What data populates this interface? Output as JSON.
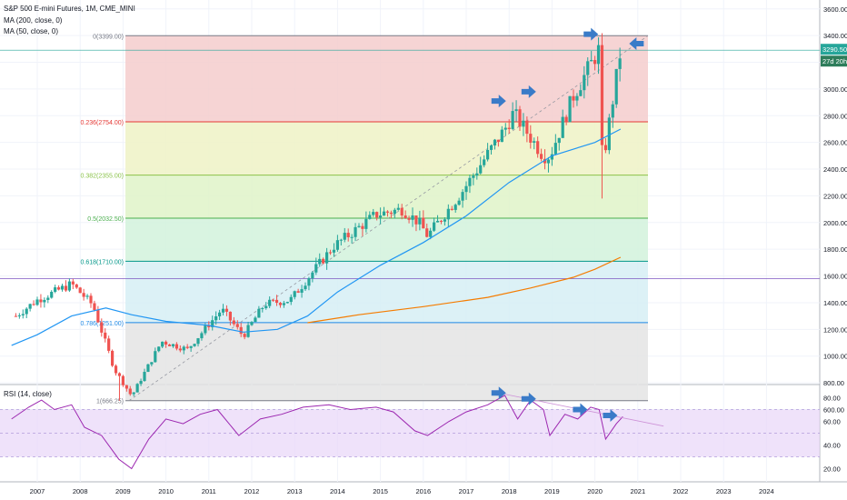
{
  "header": {
    "symbol": "S&P 500 E-mini Futures, 1M, CME_MINI",
    "ma200": "MA (200, close, 0)",
    "ma50": "MA (50, close, 0)",
    "rsi": "RSI (14, close)"
  },
  "price_badge": {
    "value": "3290.50",
    "countdown": "27d 20h"
  },
  "colors": {
    "up": "#26a69a",
    "down": "#ef5350",
    "ma50": "#2196f3",
    "ma200": "#f57c00",
    "rsi_line": "#9c27b0",
    "rsi_band": "#e8d6f8",
    "arrow": "#3a7bc8",
    "badge": "#26a69a"
  },
  "chart_data": [
    {
      "type": "candlestick",
      "title": "S&P 500 E-mini Futures, 1M, CME_MINI",
      "x_ticks": [
        "2007",
        "2008",
        "2009",
        "2010",
        "2011",
        "2012",
        "2013",
        "2014",
        "2015",
        "2016",
        "2017",
        "2018",
        "2019",
        "2020",
        "2021",
        "2022",
        "2023",
        "2024"
      ],
      "y_ticks": [
        "3600.00",
        "3400.00",
        "3200.00",
        "3000.00",
        "2800.00",
        "2600.00",
        "2400.00",
        "2200.00",
        "2000.00",
        "1800.00",
        "1600.00",
        "1400.00",
        "1200.00",
        "1000.00",
        "800.00",
        "600.00"
      ],
      "ylim": [
        560,
        3680
      ],
      "fib_levels": [
        {
          "label": "0(3399.00)",
          "value": 3399.0,
          "color": "#787b86",
          "fill": "#f5cccc"
        },
        {
          "label": "0.236(2754.00)",
          "value": 2754.0,
          "color": "#e53935",
          "fill": "#eef2c6"
        },
        {
          "label": "0.382(2355.00)",
          "value": 2355.0,
          "color": "#8bc34a",
          "fill": "#dff3c8"
        },
        {
          "label": "0.5(2032.50)",
          "value": 2032.5,
          "color": "#4caf50",
          "fill": "#d2f2dc"
        },
        {
          "label": "0.618(1710.00)",
          "value": 1710.0,
          "color": "#009688",
          "fill": "#d6eef5"
        },
        {
          "label": "0.786(1251.00)",
          "value": 1251.0,
          "color": "#1e88e5",
          "fill": "#e4e4e4"
        },
        {
          "label": "1(666.25)",
          "value": 666.25,
          "color": "#787b86",
          "fill": null
        }
      ],
      "candles_yearly_anchor_closes": {
        "2006.5": 1300,
        "2007.0": 1420,
        "2007.8": 1540,
        "2008.3": 1380,
        "2008.8": 900,
        "2009.2": 700,
        "2009.9": 1110,
        "2010.5": 1050,
        "2011.3": 1350,
        "2011.8": 1150,
        "2012.3": 1390,
        "2012.9": 1420,
        "2013.9": 1820,
        "2014.9": 2060,
        "2015.5": 2100,
        "2015.9": 2000,
        "2016.1": 1900,
        "2016.9": 2230,
        "2017.9": 2700,
        "2018.1": 2820,
        "2018.8": 2500,
        "2018.95": 2500,
        "2019.5": 2950,
        "2020.1": 3300,
        "2020.25": 2580,
        "2020.6": 3290
      },
      "ma50_series": {
        "name": "MA (50, close, 0)",
        "points": [
          [
            2006.4,
            1080
          ],
          [
            2007.0,
            1160
          ],
          [
            2007.8,
            1300
          ],
          [
            2008.6,
            1360
          ],
          [
            2009.2,
            1310
          ],
          [
            2010.0,
            1260
          ],
          [
            2011.0,
            1230
          ],
          [
            2011.8,
            1180
          ],
          [
            2012.6,
            1200
          ],
          [
            2013.3,
            1300
          ],
          [
            2014.0,
            1480
          ],
          [
            2015.0,
            1680
          ],
          [
            2016.0,
            1850
          ],
          [
            2017.0,
            2050
          ],
          [
            2018.0,
            2300
          ],
          [
            2019.0,
            2500
          ],
          [
            2020.0,
            2600
          ],
          [
            2020.6,
            2700
          ]
        ]
      },
      "ma200_series": {
        "name": "MA (200, close, 0)",
        "points": [
          [
            2013.3,
            1250
          ],
          [
            2014.5,
            1310
          ],
          [
            2016.0,
            1370
          ],
          [
            2017.5,
            1440
          ],
          [
            2018.5,
            1510
          ],
          [
            2019.5,
            1590
          ],
          [
            2020.0,
            1650
          ],
          [
            2020.6,
            1740
          ]
        ]
      },
      "last_price": 3290.5,
      "blue_arrows": [
        [
          2017.8,
          2910
        ],
        [
          2018.5,
          2980
        ],
        [
          2019.95,
          3410
        ],
        [
          2020.8,
          3340
        ]
      ]
    },
    {
      "type": "line",
      "title": "RSI (14, close)",
      "y_ticks": [
        "80.00",
        "60.00",
        "40.00",
        "20.00"
      ],
      "ylim": [
        10,
        90
      ],
      "band": [
        30,
        70
      ],
      "rsi_points": [
        [
          2006.4,
          62
        ],
        [
          2006.8,
          72
        ],
        [
          2007.1,
          78
        ],
        [
          2007.4,
          70
        ],
        [
          2007.8,
          74
        ],
        [
          2008.1,
          55
        ],
        [
          2008.5,
          48
        ],
        [
          2008.9,
          28
        ],
        [
          2009.2,
          20
        ],
        [
          2009.6,
          45
        ],
        [
          2010.0,
          62
        ],
        [
          2010.4,
          58
        ],
        [
          2010.8,
          66
        ],
        [
          2011.2,
          70
        ],
        [
          2011.7,
          48
        ],
        [
          2012.2,
          62
        ],
        [
          2012.7,
          66
        ],
        [
          2013.2,
          72
        ],
        [
          2013.8,
          74
        ],
        [
          2014.3,
          70
        ],
        [
          2014.9,
          72
        ],
        [
          2015.3,
          68
        ],
        [
          2015.8,
          52
        ],
        [
          2016.1,
          48
        ],
        [
          2016.6,
          60
        ],
        [
          2017.0,
          68
        ],
        [
          2017.5,
          74
        ],
        [
          2017.9,
          82
        ],
        [
          2018.2,
          62
        ],
        [
          2018.5,
          78
        ],
        [
          2018.8,
          70
        ],
        [
          2018.95,
          48
        ],
        [
          2019.3,
          66
        ],
        [
          2019.6,
          62
        ],
        [
          2019.9,
          72
        ],
        [
          2020.1,
          70
        ],
        [
          2020.25,
          45
        ],
        [
          2020.5,
          58
        ],
        [
          2020.65,
          64
        ]
      ],
      "trendline": [
        [
          2017.9,
          83
        ],
        [
          2021.6,
          56
        ]
      ],
      "blue_arrows": [
        [
          2017.8,
          84
        ],
        [
          2018.5,
          79
        ],
        [
          2019.7,
          70
        ],
        [
          2020.4,
          65
        ]
      ]
    }
  ]
}
